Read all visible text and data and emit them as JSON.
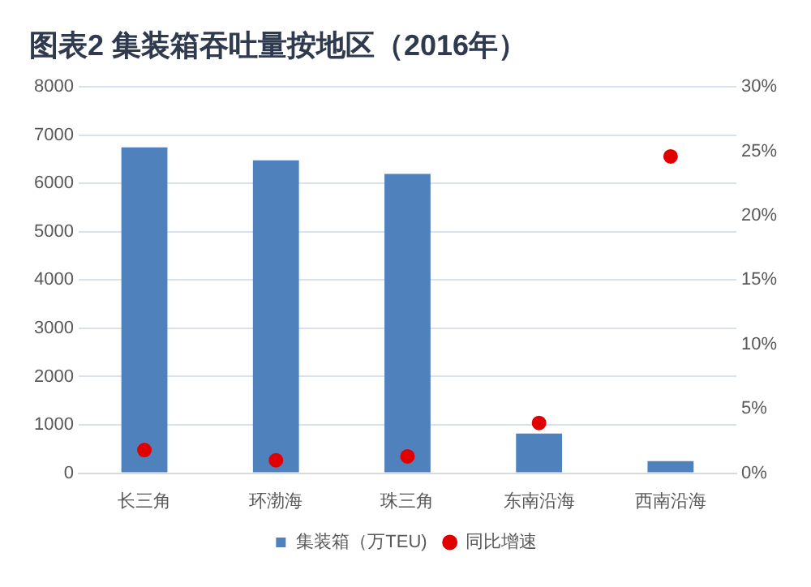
{
  "chart_data": {
    "type": "bar",
    "title": "图表2 集装箱吞吐量按地区（2016年）",
    "categories": [
      "长三角",
      "环渤海",
      "珠三角",
      "东南沿海",
      "西南沿海"
    ],
    "series": [
      {
        "name": "集装箱（万TEU)",
        "color": "#4f81bd",
        "values": [
          6750,
          6480,
          6200,
          820,
          250
        ]
      },
      {
        "name": "同比增速",
        "type": "scatter",
        "axis": "y2",
        "color": "#e00000",
        "marker": "circle",
        "values": [
          1.8,
          1.0,
          1.3,
          3.9,
          24.6
        ]
      }
    ],
    "ylim": [
      0,
      8000
    ],
    "yticks": [
      0,
      1000,
      2000,
      3000,
      4000,
      5000,
      6000,
      7000,
      8000
    ],
    "y2lim": [
      0,
      30
    ],
    "y2ticks": [
      {
        "value": 0,
        "label": "0%"
      },
      {
        "value": 5,
        "label": "5%"
      },
      {
        "value": 10,
        "label": "10%"
      },
      {
        "value": 15,
        "label": "15%"
      },
      {
        "value": 20,
        "label": "20%"
      },
      {
        "value": 25,
        "label": "25%"
      },
      {
        "value": 30,
        "label": "30%"
      }
    ],
    "grid": "y",
    "legend": "bottom"
  }
}
